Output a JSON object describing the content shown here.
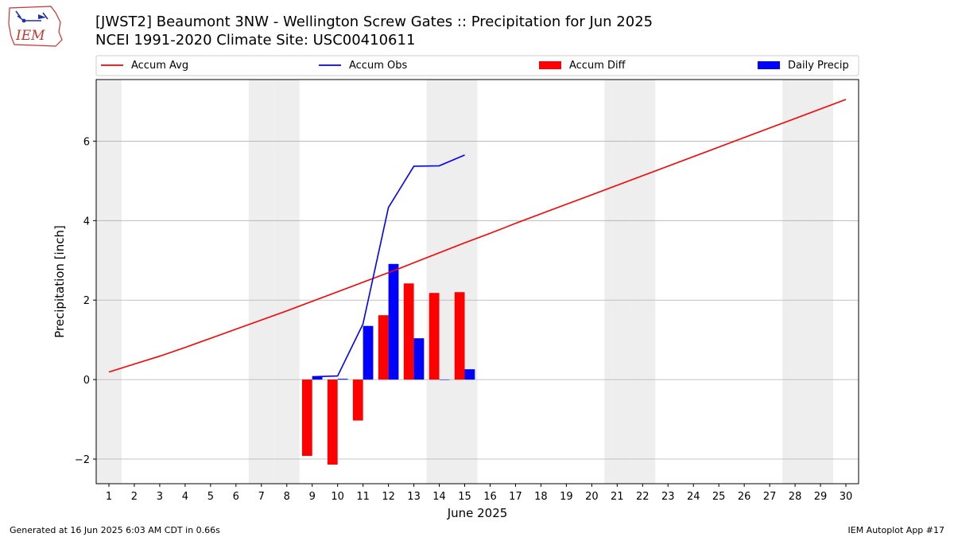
{
  "title": {
    "line1": "[JWST2] Beaumont 3NW - Wellington Screw Gates :: Precipitation for Jun 2025",
    "line2": "NCEI 1991-2020 Climate Site: USC00410611"
  },
  "logo": {
    "text": "IEM",
    "icon": "iem-logo"
  },
  "footer": {
    "left": "Generated at 16 Jun 2025 6:03 AM CDT in 0.66s",
    "right": "IEM Autoplot App #17"
  },
  "colors": {
    "avg": "#ff0000",
    "obs": "#0000ff",
    "diff": "#ff0000",
    "daily": "#0000ff",
    "weekend": "#eeeeee",
    "grid": "#b0b0b0"
  },
  "chart_data": {
    "type": "bar",
    "xlabel": "June 2025",
    "ylabel": "Precipitation [inch]",
    "xlim": [
      0.5,
      30.5
    ],
    "ylim": [
      -2.62,
      7.55
    ],
    "x_ticks": [
      1,
      2,
      3,
      4,
      5,
      6,
      7,
      8,
      9,
      10,
      11,
      12,
      13,
      14,
      15,
      16,
      17,
      18,
      19,
      20,
      21,
      22,
      23,
      24,
      25,
      26,
      27,
      28,
      29,
      30
    ],
    "y_ticks": [
      -2,
      0,
      2,
      4,
      6
    ],
    "y_tick_labels": [
      "−2",
      "0",
      "2",
      "4",
      "6"
    ],
    "grid": "horizontal",
    "legend": "top, above plot",
    "weekend_days": [
      1,
      7,
      8,
      14,
      15,
      21,
      22,
      28,
      29
    ],
    "series": [
      {
        "name": "Accum Avg",
        "kind": "line",
        "x": [
          1,
          2,
          3,
          4,
          5,
          6,
          7,
          8,
          9,
          10,
          11,
          12,
          13,
          14,
          15,
          16,
          17,
          18,
          19,
          20,
          21,
          22,
          23,
          24,
          25,
          26,
          27,
          28,
          29,
          30
        ],
        "values": [
          0.19,
          0.39,
          0.59,
          0.81,
          1.04,
          1.27,
          1.5,
          1.73,
          1.97,
          2.21,
          2.45,
          2.69,
          2.94,
          3.19,
          3.44,
          3.68,
          3.93,
          4.17,
          4.41,
          4.65,
          4.89,
          5.13,
          5.37,
          5.61,
          5.85,
          6.09,
          6.33,
          6.57,
          6.81,
          7.05
        ]
      },
      {
        "name": "Accum Obs",
        "kind": "line",
        "x": [
          9,
          10,
          11,
          12,
          13,
          14,
          15
        ],
        "values": [
          0.07,
          0.09,
          1.4,
          4.33,
          5.37,
          5.38,
          5.65
        ]
      },
      {
        "name": "Accum Diff",
        "kind": "bar",
        "x": [
          9,
          10,
          11,
          12,
          13,
          14,
          15
        ],
        "values": [
          -1.92,
          -2.14,
          -1.03,
          1.62,
          2.42,
          2.18,
          2.2
        ]
      },
      {
        "name": "Daily Precip",
        "kind": "bar",
        "x": [
          9,
          10,
          11,
          12,
          13,
          14,
          15
        ],
        "values": [
          0.07,
          0.02,
          1.35,
          2.91,
          1.04,
          0.0,
          0.26
        ]
      }
    ]
  }
}
